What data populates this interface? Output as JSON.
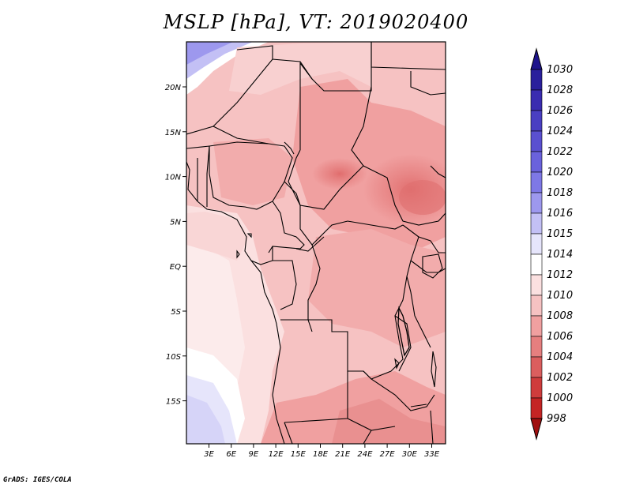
{
  "title": "MSLP [hPa], VT: 2019020400",
  "footer": "GrADS: IGES/COLA",
  "map": {
    "lon_labels": [
      "3E",
      "6E",
      "9E",
      "12E",
      "15E",
      "18E",
      "21E",
      "24E",
      "27E",
      "30E",
      "33E"
    ],
    "lat_labels": [
      "20N",
      "15N",
      "10N",
      "5N",
      "EQ",
      "5S",
      "10S",
      "15S"
    ]
  },
  "colorbar": {
    "levels": [
      "1030",
      "1028",
      "1026",
      "1024",
      "1022",
      "1020",
      "1018",
      "1016",
      "1015",
      "1014",
      "1012",
      "1010",
      "1008",
      "1006",
      "1004",
      "1002",
      "1000",
      "998"
    ],
    "colors": [
      "#2a1f9c",
      "#3a2cb0",
      "#4a3fc2",
      "#5a50d0",
      "#6a62dc",
      "#7e78e6",
      "#9d98ee",
      "#c3c0f5",
      "#e6e5fb",
      "#ffffff",
      "#fbe0e0",
      "#f6c2c2",
      "#f0a0a0",
      "#e67f7f",
      "#db5e5e",
      "#cf3c3c",
      "#c42424",
      "#b51515"
    ],
    "top_arrow_color": "#1e148c",
    "bottom_arrow_color": "#a01010"
  }
}
